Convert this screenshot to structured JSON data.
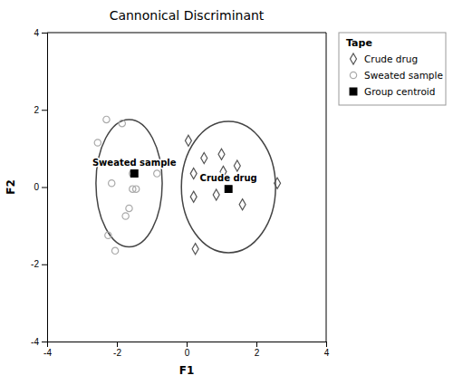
{
  "chart_data": {
    "type": "scatter",
    "title": "Cannonical Discriminant",
    "xlabel": "F1",
    "ylabel": "F2",
    "xlim": [
      -4,
      4
    ],
    "ylim": [
      -4,
      4
    ],
    "xticks": [
      -4,
      -2,
      0,
      2,
      4
    ],
    "yticks": [
      -4,
      -2,
      0,
      2,
      4
    ],
    "grid": false,
    "legend": "right",
    "legend_title": "Tape",
    "series": [
      {
        "name": "Crude drug",
        "color": "#555555",
        "marker": "open-diamond",
        "x": [
          0.05,
          0.5,
          0.2,
          0.2,
          0.25,
          1.0,
          1.45,
          1.6,
          2.6,
          0.85,
          1.05
        ],
        "values": [
          1.2,
          0.75,
          0.35,
          -0.25,
          -1.6,
          0.85,
          0.55,
          -0.45,
          0.1,
          -0.2,
          0.4
        ]
      },
      {
        "name": "Sweated sample",
        "color": "#aaaaaa",
        "marker": "open-circle",
        "x": [
          -2.3,
          -1.85,
          -2.55,
          -2.15,
          -1.55,
          -1.45,
          -1.55,
          -0.85,
          -1.65,
          -1.75,
          -2.25,
          -2.05
        ],
        "values": [
          1.75,
          1.65,
          1.15,
          0.1,
          0.35,
          -0.05,
          -0.05,
          0.35,
          -0.55,
          -0.75,
          -1.25,
          -1.65
        ]
      },
      {
        "name": "Group centroid",
        "color": "#000000",
        "marker": "square",
        "x": [
          -1.5,
          1.2
        ],
        "values": [
          0.35,
          -0.05
        ]
      }
    ],
    "ellipses": [
      {
        "center": [
          -1.65,
          0.1
        ],
        "width": 1.9,
        "height": 3.3,
        "color": "#444444"
      },
      {
        "center": [
          1.2,
          0.0
        ],
        "width": 2.7,
        "height": 3.4,
        "color": "#444444"
      }
    ],
    "annotations": [
      {
        "text": "Sweated sample",
        "x": -1.5,
        "y": 0.35
      },
      {
        "text": "Crude drug",
        "x": 1.2,
        "y": -0.05
      }
    ]
  }
}
